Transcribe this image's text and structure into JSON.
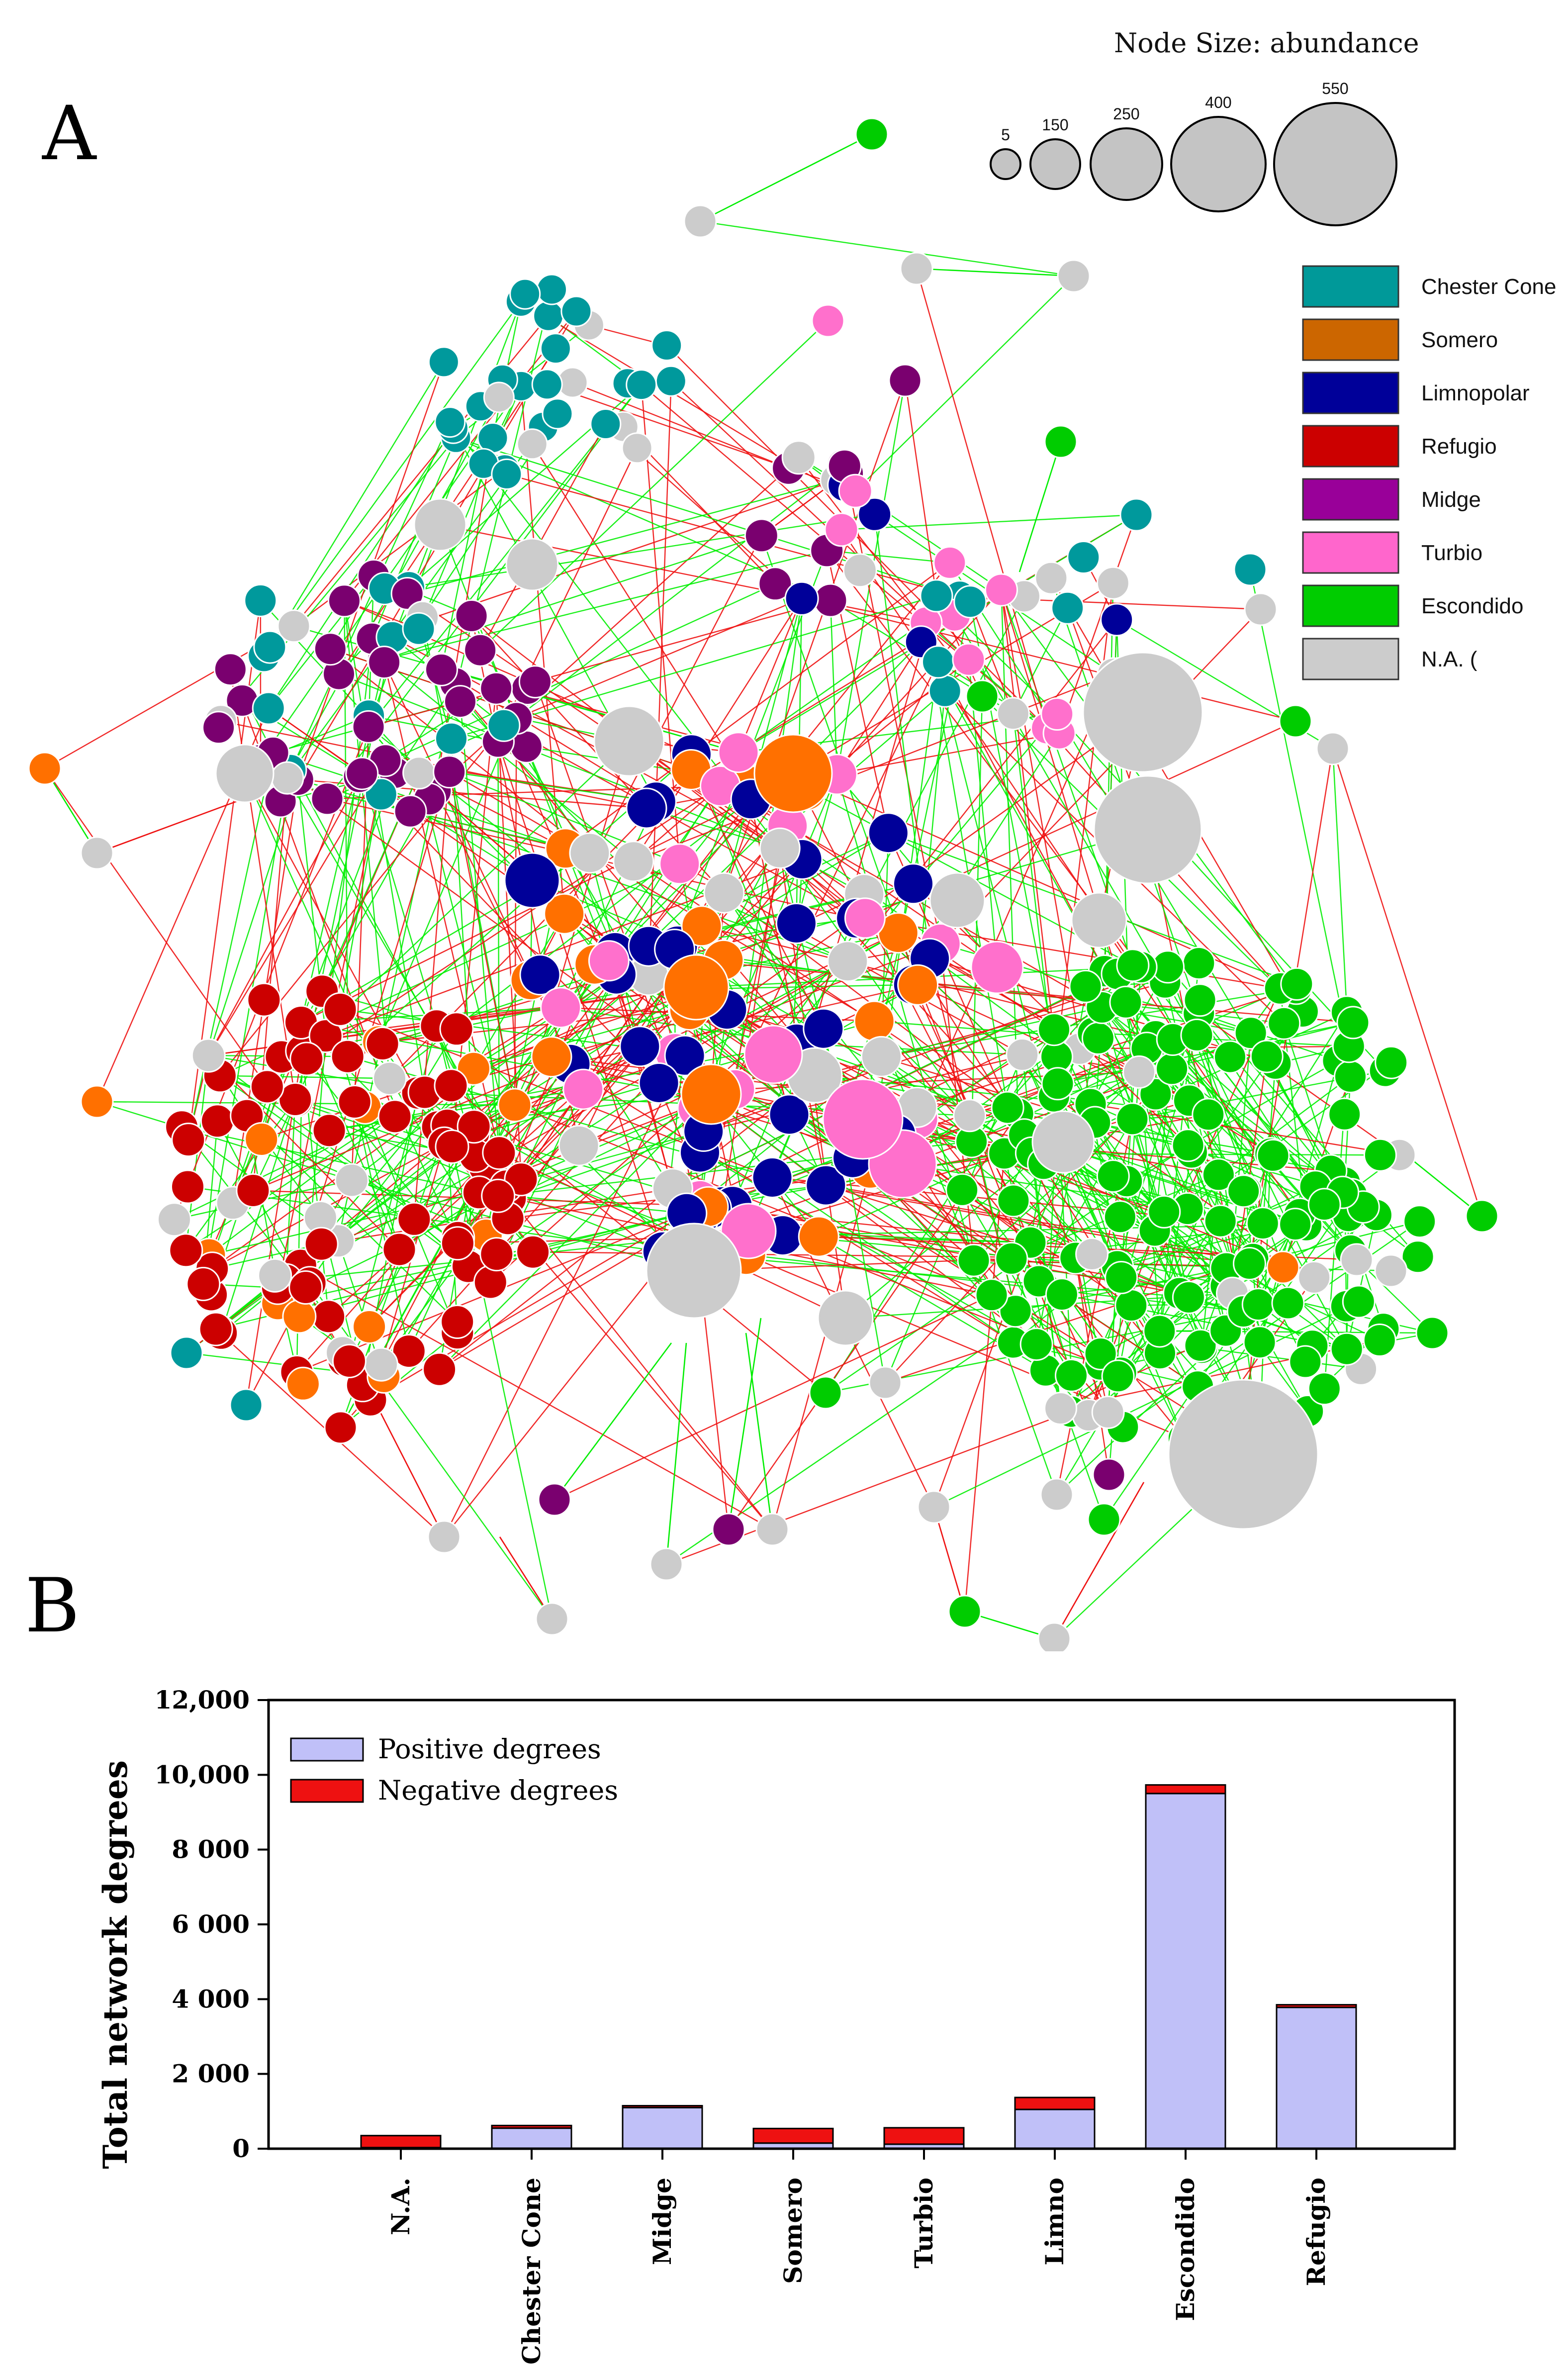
{
  "panels": {
    "a": "A",
    "b": "B"
  },
  "network": {
    "size_legend": {
      "title": "Node Size: abundance",
      "items": [
        {
          "label": "5",
          "value": 5
        },
        {
          "label": "150",
          "value": 150
        },
        {
          "label": "250",
          "value": 250
        },
        {
          "label": "400",
          "value": 400
        },
        {
          "label": "550",
          "value": 550
        }
      ]
    },
    "color_legend": [
      {
        "label": "Chester Cone",
        "color": "#009999"
      },
      {
        "label": "Somero",
        "color": "#cc6600"
      },
      {
        "label": "Limnopolar",
        "color": "#000099"
      },
      {
        "label": "Refugio",
        "color": "#cc0000"
      },
      {
        "label": "Midge",
        "color": "#990099"
      },
      {
        "label": "Turbio",
        "color": "#ff66cc"
      },
      {
        "label": "Escondido",
        "color": "#00cc00"
      },
      {
        "label": "N.A. (",
        "color": "#cccccc"
      }
    ],
    "node_colors": {
      "chester": "#00999c",
      "somero": "#ff7000",
      "limno": "#000099",
      "refugio": "#cc0000",
      "midge": "#7a006f",
      "turbio": "#ff70cc",
      "escondido": "#00cc00",
      "na": "#cccccc"
    },
    "edge_colors": {
      "positive": "#00ee00",
      "negative": "#ee1111"
    }
  },
  "chart_data": {
    "type": "bar",
    "stacked": true,
    "categories": [
      "N.A.",
      "Chester Cone",
      "Midge",
      "Somero",
      "Turbio",
      "Limno",
      "Escondido",
      "Refugio"
    ],
    "series": [
      {
        "name": "Positive degrees",
        "color": "#c0c0f8",
        "values": [
          30,
          550,
          1100,
          150,
          120,
          1050,
          9500,
          3780
        ]
      },
      {
        "name": "Negative degrees",
        "color": "#ee1111",
        "values": [
          320,
          70,
          50,
          390,
          440,
          320,
          230,
          70
        ]
      }
    ],
    "ylabel": "Total network degrees",
    "xlabel": "",
    "ylim": [
      0,
      12000
    ],
    "yticks": [
      0,
      2000,
      4000,
      6000,
      8000,
      10000,
      12000
    ],
    "ytick_labels": [
      "0",
      "2 000",
      "4 000",
      "6 000",
      "8 000",
      "10,000",
      "12,000"
    ],
    "legend": "top-left"
  }
}
